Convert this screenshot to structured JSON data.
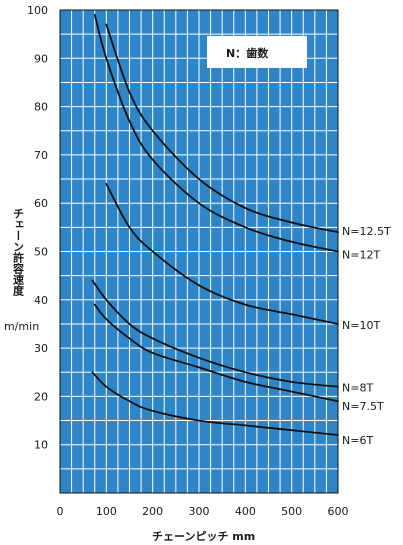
{
  "chart_data": {
    "type": "line",
    "legend_text": "N：歯数",
    "ylabel_lines": [
      "チェーン許容速度",
      "m/min"
    ],
    "xlabel": "チェーンピッチ mm",
    "xlim": [
      0,
      600
    ],
    "ylim": [
      0,
      100
    ],
    "x_ticks": [
      0,
      100,
      200,
      300,
      400,
      500,
      600
    ],
    "y_ticks": [
      10,
      20,
      30,
      40,
      50,
      60,
      70,
      80,
      90,
      100
    ],
    "grid": true,
    "colors": {
      "plot_bg": "#2e86c8",
      "grid": "#ffffff",
      "line": "#111111"
    },
    "series": [
      {
        "name": "N=12.5T",
        "x": [
          100,
          150,
          200,
          300,
          400,
          500,
          600
        ],
        "y": [
          97,
          83,
          75,
          65,
          59,
          56,
          54
        ]
      },
      {
        "name": "N=12T",
        "x": [
          75,
          100,
          150,
          200,
          300,
          400,
          500,
          600
        ],
        "y": [
          99,
          90,
          77,
          69,
          60,
          55,
          52,
          50
        ]
      },
      {
        "name": "N=10T",
        "x": [
          100,
          150,
          200,
          300,
          400,
          500,
          600
        ],
        "y": [
          64,
          55,
          50,
          43,
          39,
          37,
          35
        ]
      },
      {
        "name": "N=8T",
        "x": [
          70,
          100,
          150,
          200,
          300,
          400,
          500,
          600
        ],
        "y": [
          44,
          40,
          35,
          32,
          28,
          25,
          23,
          22
        ]
      },
      {
        "name": "N=7.5T",
        "x": [
          75,
          100,
          150,
          200,
          300,
          400,
          500,
          600
        ],
        "y": [
          39,
          36,
          32,
          29,
          26,
          23,
          21,
          19
        ]
      },
      {
        "name": "N=6T",
        "x": [
          70,
          100,
          150,
          200,
          300,
          400,
          500,
          600
        ],
        "y": [
          25,
          22,
          19,
          17,
          15,
          14,
          13,
          12
        ]
      }
    ]
  }
}
